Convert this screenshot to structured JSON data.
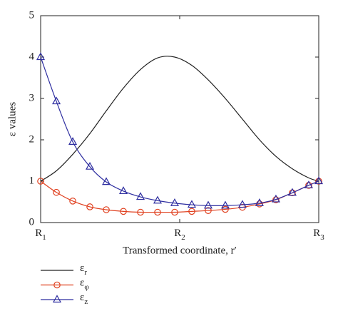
{
  "chart_data": {
    "type": "line",
    "xlabel": "Transformed coordinate, r′",
    "ylabel": "ε values",
    "x": [
      0,
      0.113,
      0.231,
      0.354,
      0.472,
      0.595,
      0.718,
      0.841,
      0.964,
      1.087,
      1.205,
      1.328,
      1.451,
      1.574,
      1.692,
      1.81,
      1.928,
      2.0
    ],
    "series": [
      {
        "name": "εr",
        "color": "#222222",
        "marker": "none",
        "values": [
          1.0,
          1.25,
          1.65,
          2.15,
          2.7,
          3.25,
          3.7,
          3.98,
          4.0,
          3.8,
          3.45,
          3.0,
          2.5,
          2.0,
          1.6,
          1.3,
          1.08,
          1.0
        ]
      },
      {
        "name": "εφ",
        "color": "#e0401f",
        "marker": "circle",
        "values": [
          1.0,
          0.73,
          0.52,
          0.38,
          0.31,
          0.27,
          0.25,
          0.25,
          0.25,
          0.27,
          0.29,
          0.32,
          0.37,
          0.45,
          0.55,
          0.72,
          0.9,
          1.0
        ]
      },
      {
        "name": "εz",
        "color": "#2e2ea0",
        "marker": "triangle",
        "values": [
          4.0,
          2.93,
          1.95,
          1.35,
          0.98,
          0.76,
          0.62,
          0.53,
          0.47,
          0.43,
          0.41,
          0.41,
          0.43,
          0.47,
          0.56,
          0.72,
          0.9,
          1.0
        ]
      }
    ],
    "xlim": [
      0,
      2
    ],
    "xticks": [
      {
        "value": 0,
        "label": "R1"
      },
      {
        "value": 1,
        "label": "R2"
      },
      {
        "value": 2,
        "label": "R3"
      }
    ],
    "ylim": [
      0,
      5
    ],
    "yticks": [
      0,
      1,
      2,
      3,
      4,
      5
    ],
    "grid": false,
    "legend": "bottom"
  }
}
